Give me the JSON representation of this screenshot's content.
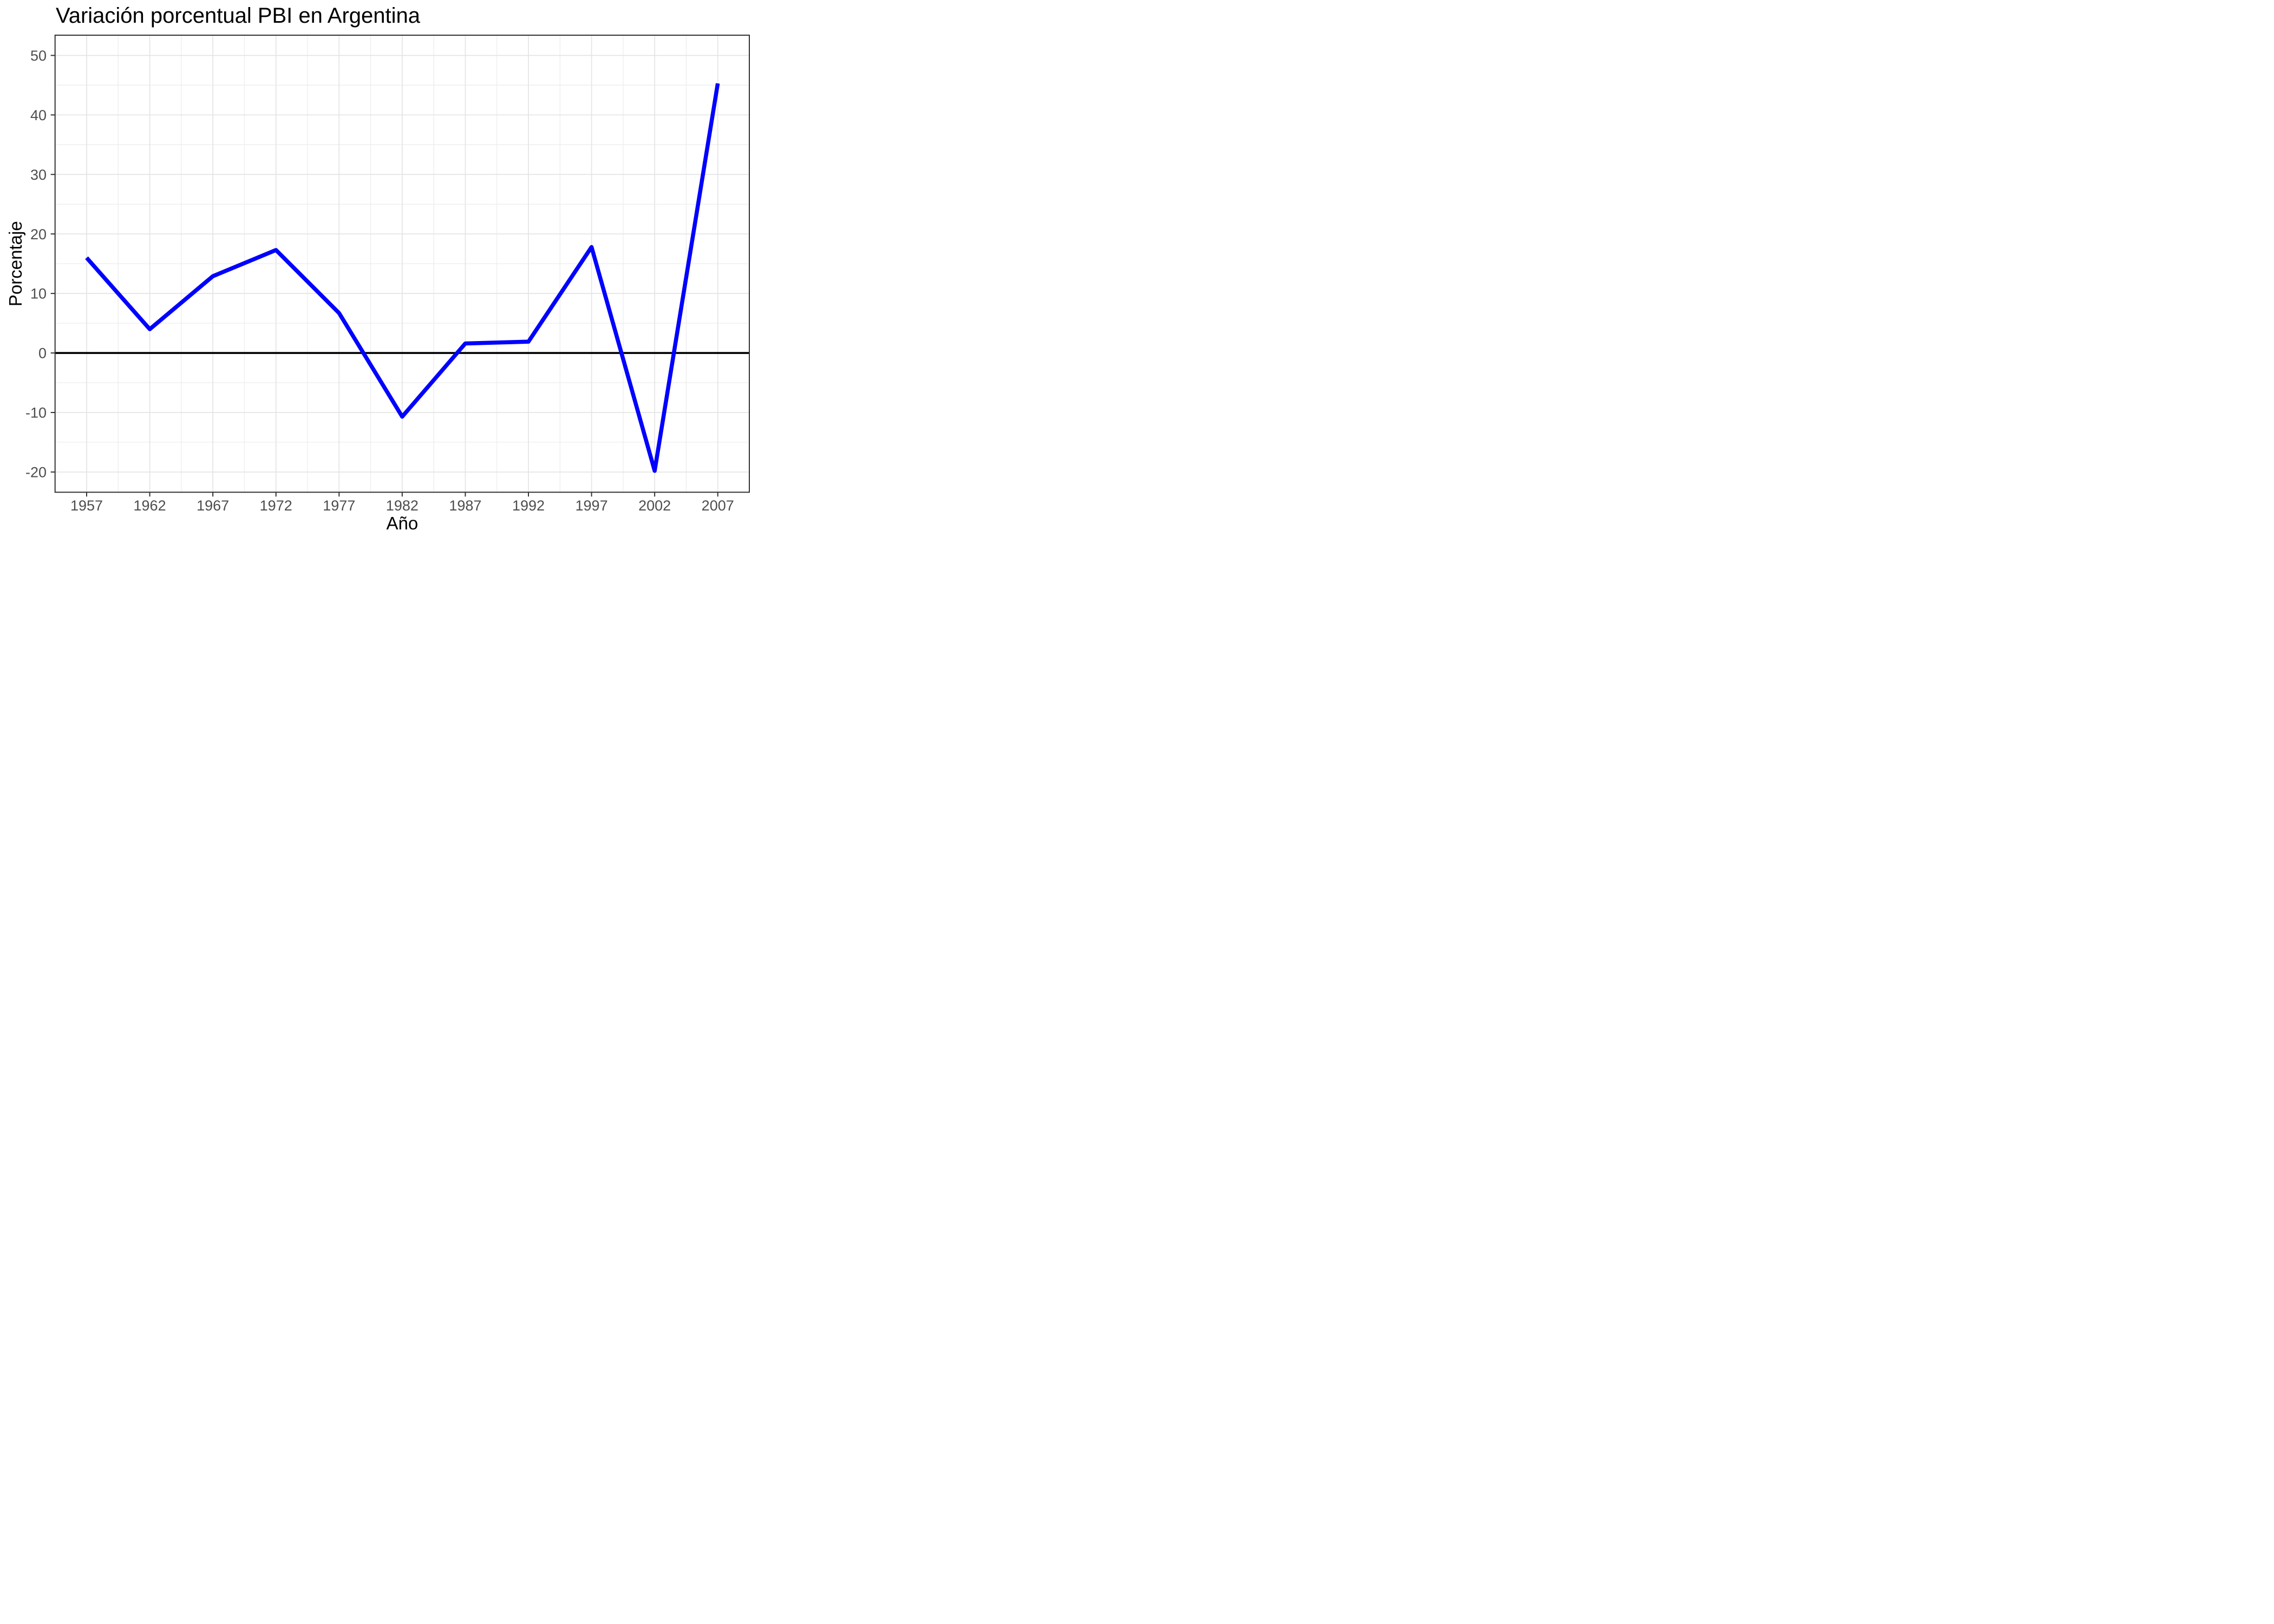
{
  "page": {
    "background": "#FFFFFF"
  },
  "chart_data": {
    "type": "line",
    "title": "Variación porcentual PBI en Argentina",
    "xlabel": "Año",
    "ylabel": "Porcentaje",
    "x": [
      1957,
      1962,
      1967,
      1972,
      1977,
      1982,
      1987,
      1992,
      1997,
      2002,
      2007
    ],
    "values": [
      16.0,
      4.0,
      12.9,
      17.3,
      6.7,
      -10.7,
      1.6,
      1.9,
      17.8,
      -19.8,
      45.3
    ],
    "series": [
      {
        "name": "Variación porcentual PBI",
        "values": [
          16.0,
          4.0,
          12.9,
          17.3,
          6.7,
          -10.7,
          1.6,
          1.9,
          17.8,
          -19.8,
          45.3
        ]
      }
    ],
    "x_ticks": [
      1957,
      1962,
      1967,
      1972,
      1977,
      1982,
      1987,
      1992,
      1997,
      2002,
      2007
    ],
    "y_ticks": [
      50,
      40,
      30,
      20,
      10,
      0,
      -10,
      -20
    ],
    "x_domain": [
      1954.5,
      2009.5
    ],
    "y_domain": [
      -23.4,
      53.4
    ],
    "grid": "major+minor",
    "legend": "none",
    "zero_reference_line": 0,
    "colors": {
      "line": "#0000FF",
      "zero_line": "#000000",
      "grid_major": "#E4E4E4",
      "grid_minor": "#ECECEC",
      "panel_border": "#333333",
      "tick_mark": "#333333",
      "tick_label": "#4D4D4D",
      "title": "#000000",
      "axis_title": "#000000",
      "background": "#FFFFFF"
    }
  }
}
